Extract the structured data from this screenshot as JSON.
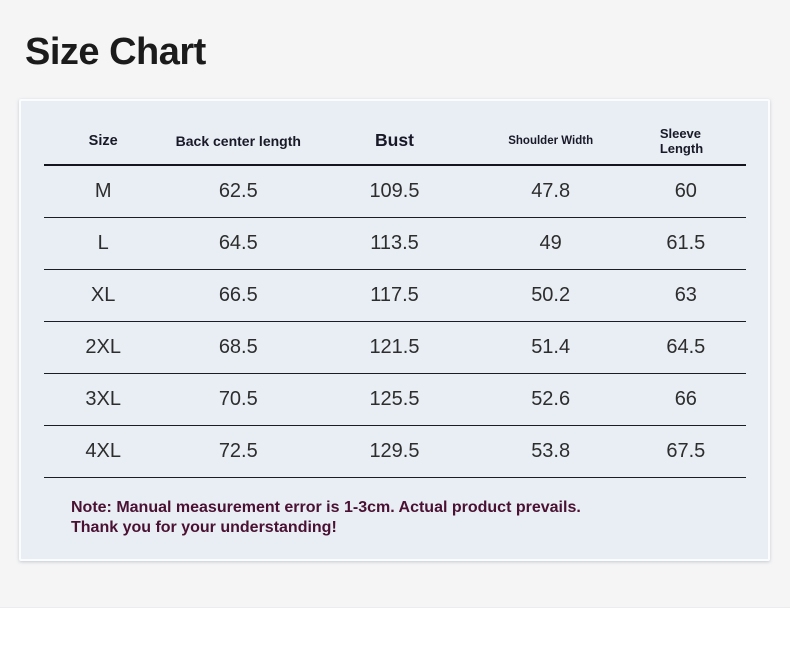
{
  "page": {
    "title": "Size Chart"
  },
  "chart_data": {
    "type": "table",
    "title": "Size Chart",
    "columns": [
      "Size",
      "Back center length",
      "Bust",
      "Shoulder Width",
      "Sleeve Length"
    ],
    "rows": [
      [
        "M",
        "62.5",
        "109.5",
        "47.8",
        "60"
      ],
      [
        "L",
        "64.5",
        "113.5",
        "49",
        "61.5"
      ],
      [
        "XL",
        "66.5",
        "117.5",
        "50.2",
        "63"
      ],
      [
        "2XL",
        "68.5",
        "121.5",
        "51.4",
        "64.5"
      ],
      [
        "3XL",
        "70.5",
        "125.5",
        "52.6",
        "66"
      ],
      [
        "4XL",
        "72.5",
        "129.5",
        "53.8",
        "67.5"
      ]
    ],
    "layout_hints": {
      "header_divider": "thick",
      "row_dividers": "thin",
      "units_implied": "cm"
    }
  },
  "note": {
    "line1": "Note: Manual measurement error is 1-3cm. Actual product prevails.",
    "line2": "Thank you for your understanding!"
  },
  "colors": {
    "page_background": "#f5f5f6",
    "panel_background": "#e8eef4",
    "panel_border": "#fbfcfd",
    "title_text": "#1b1b1b",
    "header_text": "#191927",
    "cell_text": "#2d2d2d",
    "divider_line": "#15151f",
    "note_text": "#4a1132"
  }
}
